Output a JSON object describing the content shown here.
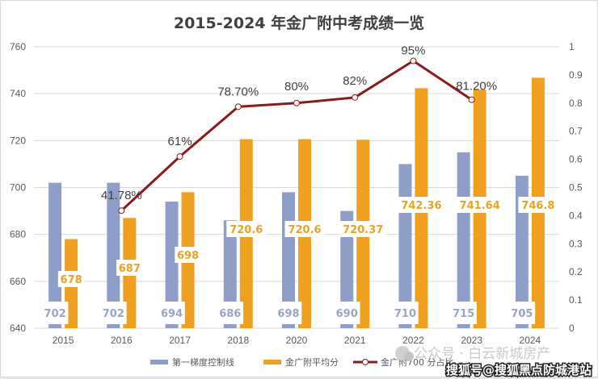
{
  "chart_data": {
    "type": "bar",
    "title": "2015-2024 年金广附中考成绩一览",
    "categories": [
      "2015",
      "2016",
      "2017",
      "2018",
      "2020",
      "2021",
      "2022",
      "2023",
      "2024"
    ],
    "series": [
      {
        "name": "第一梯度控制线",
        "type": "bar",
        "axis": "left",
        "color": "#8f9dc9",
        "values": [
          702,
          702,
          694,
          686,
          698,
          690,
          710,
          715,
          705
        ],
        "labels": [
          "702",
          "702",
          "694",
          "686",
          "698",
          "690",
          "710",
          "715",
          "705"
        ]
      },
      {
        "name": "金广附平均分",
        "type": "bar",
        "axis": "left",
        "color": "#f0a020",
        "values": [
          678,
          687,
          698,
          720.6,
          720.6,
          720.37,
          742.36,
          741.64,
          746.8
        ],
        "labels": [
          "678",
          "687",
          "698",
          "720.6",
          "720.6",
          "720.37",
          "742.36",
          "741.64",
          "746.8"
        ]
      },
      {
        "name": "金广附700 分占比",
        "type": "line",
        "axis": "right",
        "color": "#8b1a1a",
        "values": [
          null,
          0.4178,
          0.61,
          0.787,
          0.8,
          0.82,
          0.95,
          0.812,
          null
        ],
        "labels": [
          null,
          "41.78%",
          "61%",
          "78.70%",
          "80%",
          "82%",
          "95%",
          "81.20%",
          null
        ]
      }
    ],
    "y_left": {
      "ylim": [
        640,
        760
      ],
      "ticks": [
        "640",
        "660",
        "680",
        "700",
        "720",
        "740",
        "760"
      ]
    },
    "y_right": {
      "ylim": [
        0,
        1
      ],
      "ticks": [
        "0",
        "0.1",
        "0.2",
        "0.3",
        "0.4",
        "0.5",
        "0.6",
        "0.7",
        "0.8",
        "0.9",
        "1"
      ]
    },
    "grid": true,
    "legend": "bottom"
  },
  "watermark": {
    "line1": "公众号 · 白云新城房产",
    "line2": "搜狐号@搜狐黑点防城港站"
  }
}
